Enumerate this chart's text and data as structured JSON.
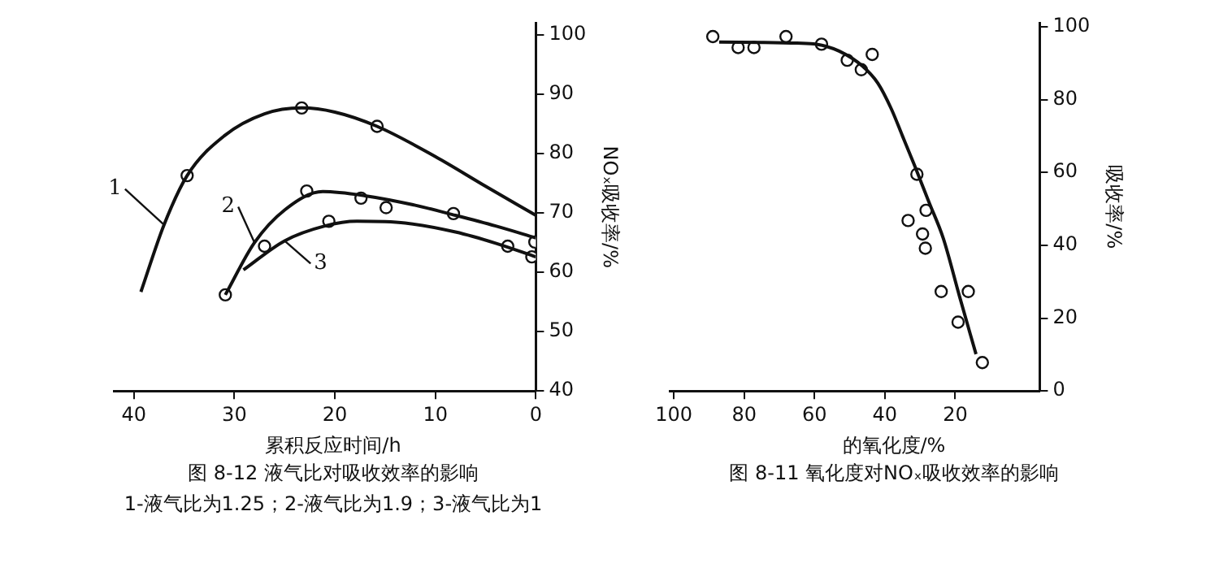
{
  "chart_data": [
    {
      "type": "line",
      "title": "图 8-12 液气比对吸收效率的影响",
      "xlabel": "累积反应时间/h",
      "ylabel": "NOₓ吸收率/%",
      "annotations": [
        "1-液气比为1.25；2-液气比为1.9；3-液气比为1"
      ],
      "xlim": [
        42,
        0
      ],
      "xticks": [
        40,
        30,
        20,
        10,
        0
      ],
      "ylim": [
        40,
        102
      ],
      "yticks": [
        40,
        50,
        60,
        70,
        80,
        90,
        100
      ],
      "grid": false,
      "series": [
        {
          "name": "1",
          "color": "#111111",
          "marker": "none",
          "x": [
            39.3,
            37,
            34.7,
            31,
            27,
            23.3,
            20,
            15.8,
            10,
            5,
            0
          ],
          "values": [
            56.7,
            68,
            76.3,
            83,
            86.7,
            87.7,
            87,
            84.6,
            79.5,
            74.5,
            69.6
          ]
        },
        {
          "type": "scatter",
          "color": "#111111",
          "marker": "circle",
          "x": [
            34.7,
            23.3,
            15.8
          ],
          "values": [
            76.3,
            87.7,
            84.6
          ]
        },
        {
          "name": "2",
          "color": "#111111",
          "marker": "none",
          "x": [
            30.9,
            28,
            25,
            21.2,
            17,
            12,
            8,
            4,
            0
          ],
          "values": [
            56.2,
            65,
            70.5,
            73.6,
            72.9,
            71.3,
            69.6,
            67.8,
            65.8
          ]
        },
        {
          "type": "scatter",
          "color": "#111111",
          "marker": "circle",
          "x": [
            30.9,
            22.8,
            17.4,
            14.9,
            8.2,
            0.1
          ],
          "values": [
            56.2,
            73.7,
            72.5,
            70.9,
            69.9,
            65.1
          ]
        },
        {
          "name": "3",
          "color": "#111111",
          "marker": "none",
          "x": [
            29.1,
            25,
            21,
            17.8,
            13,
            8,
            4,
            0
          ],
          "values": [
            60.4,
            65.3,
            67.8,
            68.6,
            68.3,
            66.8,
            64.9,
            62.6
          ]
        },
        {
          "type": "scatter",
          "color": "#111111",
          "marker": "circle",
          "x": [
            27.0,
            20.6,
            2.8,
            0.4
          ],
          "values": [
            64.4,
            68.6,
            64.4,
            62.6
          ]
        }
      ]
    },
    {
      "type": "line",
      "title": "图 8-11 氧化度对NOₓ吸收效率的影响",
      "xlabel": "的氧化度/%",
      "ylabel": "吸收率/%",
      "xlim": [
        101,
        -4
      ],
      "xticks": [
        100,
        80,
        60,
        40,
        20
      ],
      "ylim": [
        0,
        101
      ],
      "yticks": [
        0,
        20,
        40,
        60,
        80,
        100
      ],
      "grid": false,
      "series": [
        {
          "color": "#111111",
          "marker": "none",
          "x": [
            87.1,
            75,
            65,
            59.4,
            53,
            46.4,
            42,
            38.2,
            35,
            31.6,
            27.5,
            23.4,
            18.8,
            14.1
          ],
          "values": [
            95.8,
            95.7,
            95.5,
            95.2,
            93.3,
            89.2,
            84.5,
            77.5,
            70,
            62,
            51.9,
            41.9,
            26,
            10.1
          ]
        },
        {
          "type": "scatter",
          "color": "#111111",
          "marker": "circle",
          "x": [
            88.9,
            81.7,
            77.2,
            68.1,
            58.0,
            50.7,
            46.7,
            43.6,
            30.9,
            28.3,
            33.4,
            29.3,
            28.5,
            24.0,
            16.3,
            19.2,
            12.3
          ],
          "values": [
            97.3,
            94.3,
            94.3,
            97.3,
            95.2,
            90.8,
            88.2,
            92.4,
            59.5,
            49.6,
            46.8,
            43.1,
            39.2,
            27.3,
            27.3,
            18.9,
            7.8
          ]
        }
      ]
    }
  ]
}
